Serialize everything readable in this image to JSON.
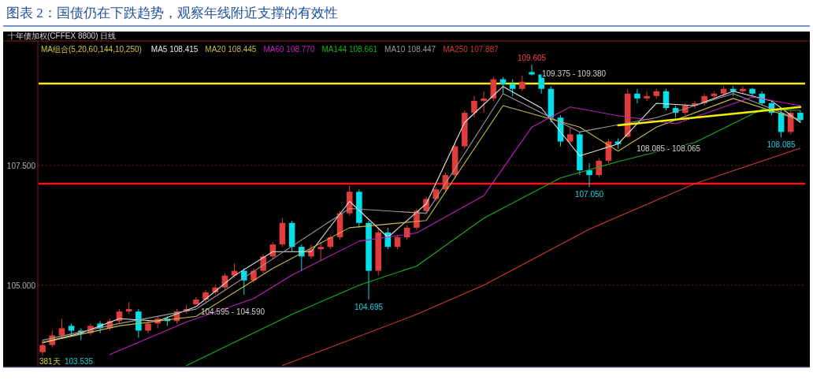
{
  "chart_data": {
    "type": "candlestick",
    "title": "图表 2：国债仍在下跌趋势，观察年线附近支撑的有效性",
    "subtitle": "十年债加权(CFFEX 8800)  日线",
    "legend_title": "MA组合(5,20,60,144,10,250)",
    "categories": [
      null,
      null,
      null,
      null,
      null,
      null,
      null,
      null,
      null,
      null,
      null,
      null,
      null,
      null,
      null,
      null,
      null,
      null,
      null,
      null,
      null,
      null,
      null,
      null,
      null,
      null,
      null,
      null,
      null,
      null,
      null,
      null,
      null,
      null,
      null,
      null,
      null,
      null,
      null,
      null,
      null,
      null,
      null,
      null,
      null,
      null,
      null,
      null,
      null,
      null,
      null,
      null,
      null,
      null,
      null,
      null,
      null,
      null,
      null,
      null,
      null,
      null,
      null,
      null,
      null,
      null,
      null,
      null,
      null,
      null,
      null,
      null,
      null,
      null,
      null,
      null,
      null,
      null,
      null,
      null
    ],
    "ohlc": [
      [
        103.6,
        103.85,
        103.535,
        103.75
      ],
      [
        103.75,
        104.05,
        103.7,
        103.95
      ],
      [
        103.95,
        104.3,
        103.9,
        104.1
      ],
      [
        104.15,
        104.2,
        103.95,
        104.05
      ],
      [
        104.05,
        104.1,
        103.85,
        104.0
      ],
      [
        104.0,
        104.2,
        103.95,
        104.15
      ],
      [
        104.2,
        104.25,
        104.0,
        104.1
      ],
      [
        104.1,
        104.3,
        104.05,
        104.25
      ],
      [
        104.25,
        104.5,
        104.2,
        104.45
      ],
      [
        104.45,
        104.65,
        104.4,
        104.5
      ],
      [
        104.45,
        104.5,
        103.9,
        104.05
      ],
      [
        104.05,
        104.25,
        104.0,
        104.2
      ],
      [
        104.2,
        104.35,
        104.1,
        104.3
      ],
      [
        104.3,
        104.35,
        104.15,
        104.25
      ],
      [
        104.25,
        104.5,
        104.2,
        104.45
      ],
      [
        104.45,
        104.59,
        104.4,
        104.5
      ],
      [
        104.6,
        104.75,
        104.595,
        104.7
      ],
      [
        104.7,
        104.9,
        104.65,
        104.85
      ],
      [
        104.85,
        105.0,
        104.8,
        104.95
      ],
      [
        104.95,
        105.25,
        104.9,
        105.2
      ],
      [
        105.2,
        105.45,
        105.15,
        105.3
      ],
      [
        105.3,
        105.35,
        104.8,
        105.1
      ],
      [
        105.1,
        105.35,
        105.05,
        105.3
      ],
      [
        105.3,
        105.65,
        105.25,
        105.6
      ],
      [
        105.6,
        105.9,
        105.55,
        105.85
      ],
      [
        105.85,
        106.4,
        105.8,
        106.3
      ],
      [
        106.3,
        106.35,
        105.7,
        105.8
      ],
      [
        105.8,
        105.85,
        105.3,
        105.6
      ],
      [
        105.6,
        105.85,
        105.55,
        105.75
      ],
      [
        105.75,
        105.9,
        105.5,
        105.8
      ],
      [
        105.8,
        106.05,
        105.75,
        106.0
      ],
      [
        106.0,
        106.55,
        105.95,
        106.5
      ],
      [
        106.5,
        107.08,
        106.45,
        106.95
      ],
      [
        106.95,
        107.0,
        106.2,
        106.3
      ],
      [
        106.3,
        106.35,
        104.695,
        105.3
      ],
      [
        105.3,
        106.2,
        105.2,
        106.1
      ],
      [
        106.1,
        106.2,
        105.75,
        105.8
      ],
      [
        105.8,
        106.05,
        105.75,
        106.0
      ],
      [
        106.0,
        106.25,
        105.95,
        106.2
      ],
      [
        106.2,
        106.6,
        106.15,
        106.55
      ],
      [
        106.55,
        106.85,
        106.5,
        106.8
      ],
      [
        106.8,
        107.05,
        106.75,
        107.0
      ],
      [
        107.0,
        107.35,
        106.95,
        107.3
      ],
      [
        107.3,
        107.95,
        107.25,
        107.9
      ],
      [
        107.9,
        108.65,
        107.85,
        108.6
      ],
      [
        108.6,
        108.95,
        108.5,
        108.85
      ],
      [
        108.85,
        109.05,
        108.6,
        108.9
      ],
      [
        108.9,
        109.35,
        108.85,
        109.3
      ],
      [
        109.3,
        109.35,
        109.0,
        109.2
      ],
      [
        109.2,
        109.3,
        108.95,
        109.1
      ],
      [
        109.1,
        109.375,
        109.05,
        109.25
      ],
      [
        109.45,
        109.605,
        109.38,
        109.4
      ],
      [
        109.4,
        109.4,
        109.0,
        109.1
      ],
      [
        109.1,
        109.15,
        108.4,
        108.5
      ],
      [
        108.5,
        108.55,
        107.9,
        108.0
      ],
      [
        108.0,
        108.3,
        107.95,
        108.15
      ],
      [
        108.15,
        108.2,
        107.3,
        107.4
      ],
      [
        107.4,
        107.55,
        107.05,
        107.3
      ],
      [
        107.3,
        107.65,
        107.25,
        107.6
      ],
      [
        107.6,
        108.05,
        107.55,
        108.0
      ],
      [
        108.0,
        108.065,
        107.85,
        107.95
      ],
      [
        108.1,
        109.1,
        108.085,
        109.0
      ],
      [
        109.0,
        109.1,
        108.8,
        108.9
      ],
      [
        108.9,
        109.05,
        108.85,
        108.95
      ],
      [
        108.95,
        109.1,
        108.9,
        109.05
      ],
      [
        109.05,
        109.1,
        108.65,
        108.7
      ],
      [
        108.7,
        108.75,
        108.5,
        108.6
      ],
      [
        108.6,
        108.8,
        108.55,
        108.75
      ],
      [
        108.75,
        108.85,
        108.7,
        108.8
      ],
      [
        108.8,
        109.0,
        108.75,
        108.95
      ],
      [
        108.95,
        109.05,
        108.9,
        109.0
      ],
      [
        109.0,
        109.15,
        108.95,
        109.1
      ],
      [
        109.1,
        109.15,
        108.95,
        109.05
      ],
      [
        109.05,
        109.15,
        109.0,
        109.1
      ],
      [
        109.1,
        109.12,
        108.95,
        109.0
      ],
      [
        109.0,
        109.05,
        108.75,
        108.8
      ],
      [
        108.8,
        108.85,
        108.55,
        108.6
      ],
      [
        108.6,
        108.65,
        108.085,
        108.2
      ],
      [
        108.2,
        108.65,
        108.15,
        108.6
      ],
      [
        108.6,
        108.65,
        108.4,
        108.45
      ]
    ],
    "colors": [
      "#e03c3c",
      "#e03c3c",
      "#e03c3c",
      "#00e0e8",
      "#00e0e8",
      "#e03c3c",
      "#00e0e8",
      "#e03c3c",
      "#e03c3c",
      "#e03c3c",
      "#00e0e8",
      "#e03c3c",
      "#e03c3c",
      "#00e0e8",
      "#e03c3c",
      "#e03c3c",
      "#e03c3c",
      "#e03c3c",
      "#e03c3c",
      "#e03c3c",
      "#e03c3c",
      "#00e0e8",
      "#e03c3c",
      "#e03c3c",
      "#e03c3c",
      "#e03c3c",
      "#00e0e8",
      "#00e0e8",
      "#e03c3c",
      "#e03c3c",
      "#e03c3c",
      "#e03c3c",
      "#e03c3c",
      "#00e0e8",
      "#00e0e8",
      "#e03c3c",
      "#00e0e8",
      "#e03c3c",
      "#e03c3c",
      "#e03c3c",
      "#e03c3c",
      "#e03c3c",
      "#e03c3c",
      "#e03c3c",
      "#e03c3c",
      "#e03c3c",
      "#e03c3c",
      "#e03c3c",
      "#00e0e8",
      "#00e0e8",
      "#e03c3c",
      "#00e0e8",
      "#00e0e8",
      "#00e0e8",
      "#00e0e8",
      "#e03c3c",
      "#00e0e8",
      "#00e0e8",
      "#e03c3c",
      "#e03c3c",
      "#00e0e8",
      "#e03c3c",
      "#00e0e8",
      "#e03c3c",
      "#e03c3c",
      "#00e0e8",
      "#00e0e8",
      "#e03c3c",
      "#e03c3c",
      "#e03c3c",
      "#e03c3c",
      "#e03c3c",
      "#00e0e8",
      "#e03c3c",
      "#00e0e8",
      "#00e0e8",
      "#00e0e8",
      "#00e0e8",
      "#e03c3c",
      "#00e0e8"
    ],
    "series": [
      {
        "name": "MA5 108.415",
        "type": "line",
        "color": "#e8e8e8",
        "values": [
          103.8,
          null,
          null,
          null,
          104.0,
          null,
          null,
          null,
          104.3,
          null,
          null,
          null,
          104.25,
          null,
          null,
          null,
          104.55,
          null,
          null,
          null,
          105.2,
          null,
          null,
          null,
          105.7,
          null,
          null,
          null,
          105.7,
          null,
          null,
          null,
          106.75,
          null,
          null,
          null,
          106.0,
          null,
          null,
          null,
          106.7,
          null,
          null,
          null,
          108.4,
          null,
          null,
          null,
          109.15,
          null,
          null,
          null,
          108.7,
          null,
          null,
          null,
          107.7,
          null,
          null,
          null,
          107.95,
          null,
          null,
          null,
          108.8,
          null,
          null,
          null,
          108.75,
          null,
          null,
          null,
          109.05,
          null,
          null,
          null,
          108.85,
          null,
          null,
          108.4
        ]
      },
      {
        "name": "MA20 108.445",
        "type": "line",
        "color": "#c8bc48",
        "values": [
          103.8,
          null,
          null,
          null,
          null,
          null,
          null,
          null,
          104.15,
          null,
          null,
          null,
          null,
          null,
          null,
          null,
          104.35,
          null,
          null,
          null,
          null,
          null,
          null,
          null,
          105.35,
          null,
          null,
          null,
          null,
          null,
          null,
          null,
          106.2,
          null,
          null,
          null,
          null,
          null,
          null,
          null,
          106.35,
          null,
          null,
          null,
          null,
          null,
          null,
          null,
          108.75,
          null,
          null,
          null,
          null,
          null,
          null,
          null,
          108.3,
          null,
          null,
          null,
          107.8,
          null,
          null,
          null,
          108.3,
          null,
          null,
          null,
          null,
          null,
          null,
          null,
          108.9,
          null,
          null,
          null,
          null,
          null,
          null,
          108.45
        ]
      },
      {
        "name": "MA60 108.770",
        "type": "line",
        "color": "#c020c0",
        "values": [
          null,
          null,
          null,
          null,
          null,
          null,
          null,
          103.55,
          null,
          null,
          null,
          null,
          null,
          null,
          null,
          104.23,
          null,
          null,
          null,
          null,
          null,
          null,
          104.72,
          null,
          null,
          null,
          105.21,
          null,
          null,
          null,
          null,
          null,
          null,
          105.92,
          null,
          null,
          null,
          null,
          null,
          106.09,
          null,
          null,
          null,
          null,
          null,
          null,
          106.87,
          null,
          null,
          null,
          null,
          108.3,
          null,
          null,
          null,
          108.72,
          null,
          null,
          null,
          null,
          108.54,
          null,
          null,
          null,
          null,
          null,
          108.37,
          null,
          null,
          null,
          null,
          null,
          null,
          null,
          108.93,
          null,
          null,
          null,
          null,
          108.75
        ]
      },
      {
        "name": "MA144 108.661",
        "type": "line",
        "color": "#18b018",
        "values": [
          null,
          null,
          null,
          null,
          null,
          null,
          null,
          null,
          null,
          null,
          null,
          null,
          null,
          null,
          null,
          103.32,
          null,
          null,
          null,
          null,
          null,
          null,
          null,
          null,
          null,
          null,
          104.39,
          null,
          null,
          null,
          null,
          null,
          null,
          105.0,
          null,
          null,
          null,
          null,
          null,
          105.4,
          null,
          null,
          null,
          null,
          null,
          null,
          106.4,
          null,
          null,
          null,
          null,
          null,
          null,
          null,
          107.24,
          null,
          null,
          null,
          null,
          null,
          107.58,
          null,
          null,
          null,
          null,
          null,
          null,
          null,
          107.98,
          null,
          null,
          null,
          null,
          null,
          null,
          108.67,
          null,
          null,
          null,
          108.65
        ]
      },
      {
        "name": "MA10 108.447",
        "type": "line",
        "color": "#9a9a9a",
        "values": [
          103.85,
          null,
          null,
          null,
          null,
          null,
          null,
          null,
          104.2,
          null,
          null,
          null,
          null,
          null,
          null,
          null,
          104.5,
          null,
          null,
          null,
          null,
          null,
          null,
          null,
          105.55,
          null,
          null,
          null,
          null,
          null,
          null,
          null,
          106.6,
          null,
          null,
          null,
          null,
          null,
          null,
          null,
          106.5,
          null,
          null,
          null,
          null,
          null,
          null,
          null,
          109.0,
          null,
          null,
          null,
          null,
          null,
          null,
          null,
          108.2,
          null,
          null,
          null,
          null,
          null,
          null,
          null,
          108.5,
          null,
          null,
          null,
          null,
          null,
          null,
          null,
          109.0,
          null,
          null,
          null,
          null,
          null,
          null,
          108.45
        ]
      },
      {
        "name": "MA250 107.887",
        "type": "line",
        "color": "#d03a3a",
        "values": [
          null,
          null,
          null,
          null,
          null,
          null,
          null,
          null,
          null,
          null,
          null,
          null,
          null,
          null,
          null,
          null,
          null,
          null,
          null,
          null,
          null,
          null,
          null,
          null,
          null,
          103.32,
          null,
          null,
          null,
          null,
          null,
          null,
          null,
          null,
          null,
          null,
          null,
          null,
          null,
          104.39,
          null,
          null,
          null,
          null,
          null,
          null,
          105.0,
          null,
          null,
          null,
          null,
          null,
          null,
          null,
          null,
          null,
          null,
          106.17,
          null,
          null,
          null,
          null,
          null,
          null,
          null,
          null,
          null,
          null,
          107.12,
          null,
          null,
          null,
          null,
          null,
          null,
          null,
          null,
          null,
          null,
          107.86
        ]
      },
      {
        "type": "line",
        "color": "#f4f000",
        "values": [
          null,
          null,
          null,
          null,
          null,
          null,
          null,
          null,
          null,
          null,
          null,
          null,
          null,
          null,
          null,
          null,
          null,
          null,
          null,
          null,
          null,
          null,
          null,
          null,
          null,
          null,
          null,
          null,
          null,
          null,
          null,
          null,
          null,
          null,
          null,
          null,
          null,
          null,
          null,
          null,
          null,
          null,
          null,
          null,
          null,
          null,
          null,
          null,
          null,
          null,
          null,
          null,
          null,
          null,
          null,
          null,
          null,
          null,
          null,
          null,
          108.34,
          null,
          null,
          null,
          null,
          null,
          null,
          null,
          null,
          null,
          null,
          null,
          null,
          null,
          null,
          null,
          null,
          null,
          null,
          108.72
        ]
      }
    ],
    "ref_lines": [
      {
        "axis": "y",
        "value": 109.21,
        "color": "#f4f000"
      },
      {
        "axis": "y",
        "value": 107.12,
        "color": "#ff1010"
      }
    ],
    "annotations": [
      {
        "text": "109.605",
        "y": 109.605
      },
      "109.375 - 109.380",
      "108.085 - 108.065",
      {
        "text": "108.085",
        "y": 108.085
      },
      {
        "text": "107.050",
        "y": 107.05
      },
      {
        "text": "104.695",
        "y": 104.695
      },
      {
        "text": "104.595 - 104.590",
        "y": 104.59
      },
      "103.535",
      "381天"
    ],
    "ylim": [
      103.3,
      110.1
    ],
    "yticks": [
      {
        "value": 105,
        "label": "105.000"
      },
      {
        "value": 107.5,
        "label": "107.500"
      }
    ],
    "grid": "y",
    "legend": "top left",
    "tick_labels": "y",
    "marker": "none"
  }
}
